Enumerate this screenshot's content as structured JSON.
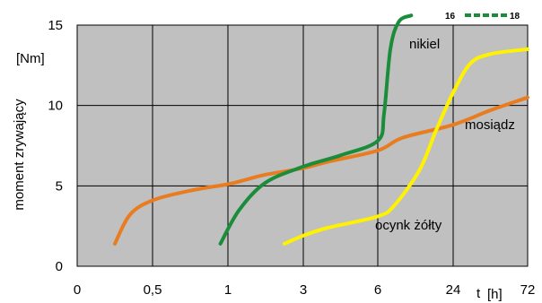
{
  "chart_data": {
    "type": "line",
    "x_tick_labels": [
      "0",
      "0,5",
      "1",
      "3",
      "6",
      "24",
      "72"
    ],
    "y_ticks": [
      0,
      5,
      10,
      15
    ],
    "ylim": [
      0,
      15
    ],
    "ylabel": "moment zrywający",
    "yunit": "[Nm]",
    "xlabel": "t",
    "xunit": "[h]",
    "grid": true,
    "series": [
      {
        "name": "mosiądz",
        "color": "#e87c1e",
        "points": [
          [
            0.25,
            1.4
          ],
          [
            0.35,
            3.2
          ],
          [
            0.5,
            4.1
          ],
          [
            0.75,
            4.7
          ],
          [
            1,
            5.1
          ],
          [
            1.5,
            5.4
          ],
          [
            2,
            5.7
          ],
          [
            3,
            6.1
          ],
          [
            4,
            6.5
          ],
          [
            6,
            7.2
          ],
          [
            12,
            8.0
          ],
          [
            24,
            8.8
          ],
          [
            48,
            9.7
          ],
          [
            72,
            10.5
          ]
        ]
      },
      {
        "name": "nikiel",
        "color": "#1a8c3a",
        "points": [
          [
            0.95,
            1.4
          ],
          [
            1.3,
            3.5
          ],
          [
            2,
            5.2
          ],
          [
            3,
            6.2
          ],
          [
            4.5,
            6.9
          ],
          [
            6,
            7.8
          ],
          [
            7.5,
            9.5
          ],
          [
            9,
            13.5
          ],
          [
            11,
            15.2
          ],
          [
            14,
            15.6
          ]
        ]
      },
      {
        "name": "ocynk żółty",
        "color": "#fff200",
        "points": [
          [
            2.5,
            1.4
          ],
          [
            3,
            1.9
          ],
          [
            4,
            2.4
          ],
          [
            6,
            3.1
          ],
          [
            10,
            3.8
          ],
          [
            16,
            6.0
          ],
          [
            20,
            8.5
          ],
          [
            24,
            10.8
          ],
          [
            35,
            12.6
          ],
          [
            48,
            13.2
          ],
          [
            72,
            13.5
          ]
        ]
      }
    ],
    "annotations": [
      {
        "text": "16",
        "color": "#000000"
      },
      {
        "text": "18",
        "color": "#000000"
      }
    ]
  }
}
